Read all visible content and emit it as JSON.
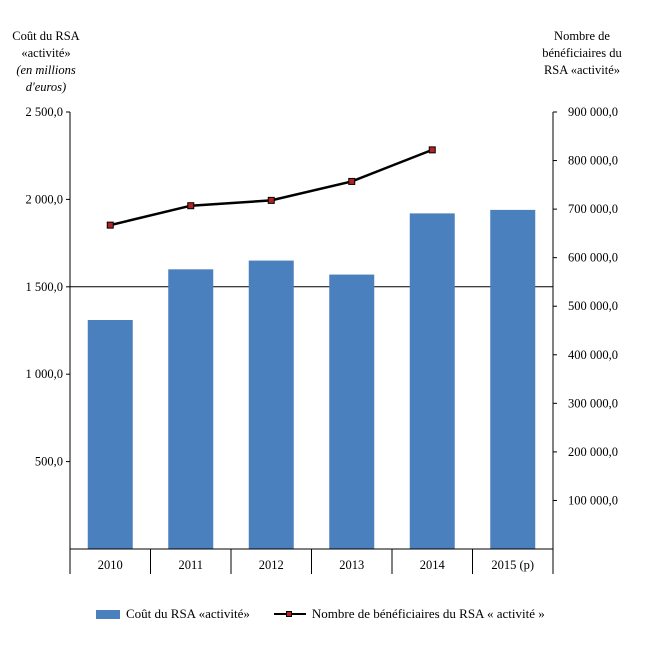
{
  "chart_data": {
    "type": "bar",
    "categories": [
      "2010",
      "2011",
      "2012",
      "2013",
      "2014",
      "2015 (p)"
    ],
    "series": [
      {
        "name": "Coût du RSA «activité»",
        "type": "bar",
        "axis": "left",
        "values": [
          1310,
          1600,
          1650,
          1570,
          1920,
          1940
        ]
      },
      {
        "name": "Nombre de bénéficiaires du RSA « activité »",
        "type": "line",
        "axis": "right",
        "values": [
          667000,
          707000,
          718000,
          757000,
          822000,
          null
        ]
      }
    ],
    "left_axis": {
      "label_lines": [
        "Coût du RSA",
        "«activité»"
      ],
      "unit_lines": [
        "(en millions",
        "d'euros)"
      ],
      "ylim": [
        0,
        2500
      ],
      "ticks": [
        500,
        1000,
        1500,
        2000,
        2500
      ],
      "tick_labels": [
        "500,0",
        "1 000,0",
        "1 500,0",
        "2 000,0",
        "2 500,0"
      ]
    },
    "right_axis": {
      "label_lines": [
        "Nombre de",
        "bénéficiaires du",
        "RSA  «activité»"
      ],
      "ylim": [
        0,
        900000
      ],
      "ticks": [
        100000,
        200000,
        300000,
        400000,
        500000,
        600000,
        700000,
        800000,
        900000
      ],
      "tick_labels": [
        "100 000,0",
        "200 000,0",
        "300 000,0",
        "400 000,0",
        "500 000,0",
        "600 000,0",
        "700 000,0",
        "800 000,0",
        "900 000,0"
      ]
    },
    "colors": {
      "bar": "#4a80bd",
      "line": "#000000",
      "marker": "#b22222",
      "gridline": "#000000"
    },
    "gridline_at": 1500,
    "legend_position": "bottom"
  }
}
